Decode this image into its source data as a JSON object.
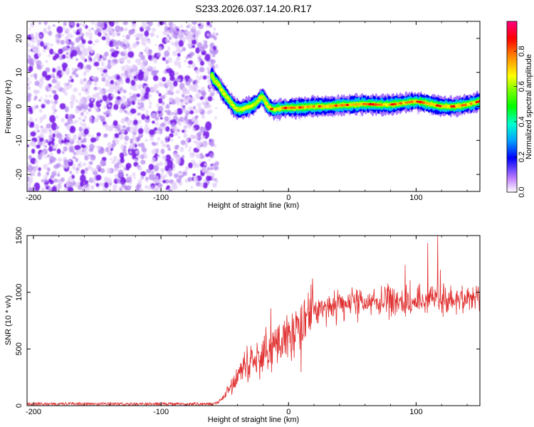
{
  "title": "S233.2026.037.14.20.R17",
  "chart_data": [
    {
      "type": "heatmap",
      "name": "spectrogram",
      "xlabel": "Height of straight line (km)",
      "ylabel": "Frequency (Hz)",
      "xlim": [
        -205,
        150
      ],
      "ylim": [
        -25,
        25
      ],
      "xticks": [
        -200,
        -100,
        0,
        100
      ],
      "yticks": [
        -20,
        -10,
        0,
        10,
        20
      ],
      "noise_region_x": [
        -205,
        -58
      ],
      "ridge": [
        {
          "x": -60,
          "y": 9
        },
        {
          "x": -58,
          "y": 7.5
        },
        {
          "x": -55,
          "y": 6.5
        },
        {
          "x": -52,
          "y": 4.5
        },
        {
          "x": -48,
          "y": 2.5
        },
        {
          "x": -45,
          "y": 1
        },
        {
          "x": -42,
          "y": -0.5
        },
        {
          "x": -38,
          "y": -1
        },
        {
          "x": -34,
          "y": -0.5
        },
        {
          "x": -30,
          "y": 0
        },
        {
          "x": -27,
          "y": 0.5
        },
        {
          "x": -24,
          "y": 1.5
        },
        {
          "x": -21,
          "y": 3
        },
        {
          "x": -19,
          "y": 2
        },
        {
          "x": -16,
          "y": 0
        },
        {
          "x": -12,
          "y": -1
        },
        {
          "x": -5,
          "y": -0.5
        },
        {
          "x": 10,
          "y": -0.3
        },
        {
          "x": 20,
          "y": 0
        },
        {
          "x": 30,
          "y": 0
        },
        {
          "x": 40,
          "y": 0.3
        },
        {
          "x": 50,
          "y": 0.5
        },
        {
          "x": 60,
          "y": 0.7
        },
        {
          "x": 70,
          "y": 0.5
        },
        {
          "x": 80,
          "y": 0.5
        },
        {
          "x": 90,
          "y": 1
        },
        {
          "x": 100,
          "y": 1.5
        },
        {
          "x": 110,
          "y": 0.8
        },
        {
          "x": 120,
          "y": 0
        },
        {
          "x": 130,
          "y": 0
        },
        {
          "x": 140,
          "y": 0.5
        },
        {
          "x": 150,
          "y": 1.5
        }
      ],
      "colorbar": {
        "label": "Normalized spectral amplitude",
        "range": [
          0,
          0.97
        ],
        "ticks": [
          0.0,
          0.2,
          0.4,
          0.6,
          0.8
        ],
        "tick_labels": [
          "0.0",
          "0.2",
          "0.4",
          "0.6",
          "0.8"
        ]
      }
    },
    {
      "type": "line",
      "name": "snr",
      "xlabel": "Height of straight line (km)",
      "ylabel": "SNR (10 * v/v)",
      "xlim": [
        -205,
        150
      ],
      "ylim": [
        0,
        1500
      ],
      "xticks": [
        -200,
        -100,
        0,
        100
      ],
      "yticks": [
        0,
        500,
        1000,
        1500
      ],
      "color": "#e03030",
      "series": [
        {
          "name": "SNR",
          "x": [
            -205,
            -60,
            -55,
            -50,
            -45,
            -40,
            -35,
            -30,
            -25,
            -20,
            -15,
            -10,
            -5,
            0,
            5,
            10,
            15,
            20,
            25,
            30,
            35,
            40,
            45,
            50,
            60,
            70,
            80,
            90,
            100,
            110,
            120,
            130,
            140,
            150
          ],
          "y": [
            15,
            15,
            30,
            80,
            180,
            260,
            320,
            370,
            400,
            440,
            470,
            510,
            560,
            600,
            650,
            700,
            760,
            820,
            860,
            880,
            890,
            900,
            900,
            910,
            910,
            920,
            920,
            930,
            930,
            930,
            940,
            940,
            940,
            940
          ]
        }
      ]
    }
  ]
}
